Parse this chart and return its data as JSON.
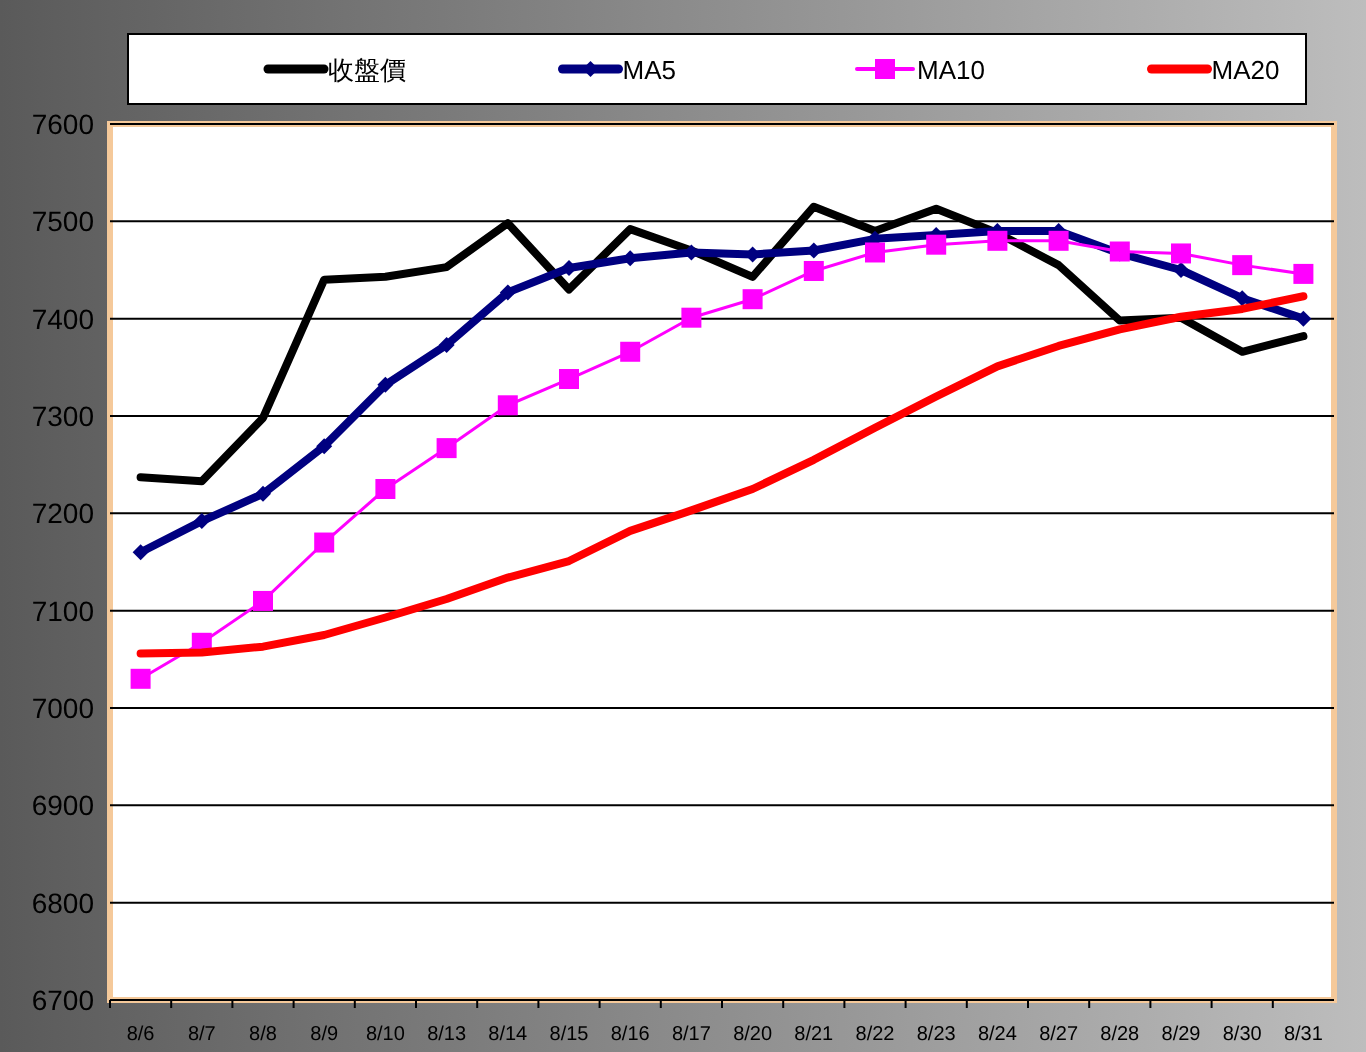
{
  "chart_data": {
    "type": "line",
    "categories": [
      "8/6",
      "8/7",
      "8/8",
      "8/9",
      "8/10",
      "8/13",
      "8/14",
      "8/15",
      "8/16",
      "8/17",
      "8/20",
      "8/21",
      "8/22",
      "8/23",
      "8/24",
      "8/27",
      "8/28",
      "8/29",
      "8/30",
      "8/31"
    ],
    "series": [
      {
        "name": "收盤價",
        "color": "#000000",
        "marker": "none",
        "values": [
          7237,
          7233,
          7298,
          7440,
          7443,
          7453,
          7498,
          7430,
          7492,
          7470,
          7443,
          7515,
          7490,
          7513,
          7488,
          7455,
          7398,
          7401,
          7366,
          7382
        ]
      },
      {
        "name": "MA5",
        "color": "#000080",
        "marker": "diamond",
        "values": [
          7160,
          7192,
          7220,
          7269,
          7332,
          7373,
          7427,
          7452,
          7462,
          7468,
          7466,
          7470,
          7482,
          7486,
          7490,
          7490,
          7467,
          7450,
          7421,
          7400
        ]
      },
      {
        "name": "MA10",
        "color": "#ff00ff",
        "marker": "square",
        "values": [
          7030,
          7067,
          7110,
          7170,
          7225,
          7267,
          7311,
          7338,
          7366,
          7401,
          7420,
          7449,
          7468,
          7476,
          7480,
          7480,
          7469,
          7467,
          7455,
          7446
        ]
      },
      {
        "name": "MA20",
        "color": "#ff0000",
        "marker": "none",
        "values": [
          7056,
          7057,
          7063,
          7075,
          7093,
          7112,
          7134,
          7151,
          7182,
          7203,
          7225,
          7255,
          7288,
          7320,
          7351,
          7372,
          7389,
          7402,
          7410,
          7423
        ]
      }
    ],
    "ylim": [
      6700,
      7600
    ],
    "yticks": [
      6700,
      6800,
      6900,
      7000,
      7100,
      7200,
      7300,
      7400,
      7500,
      7600
    ],
    "grid": "y",
    "legend": "top"
  }
}
